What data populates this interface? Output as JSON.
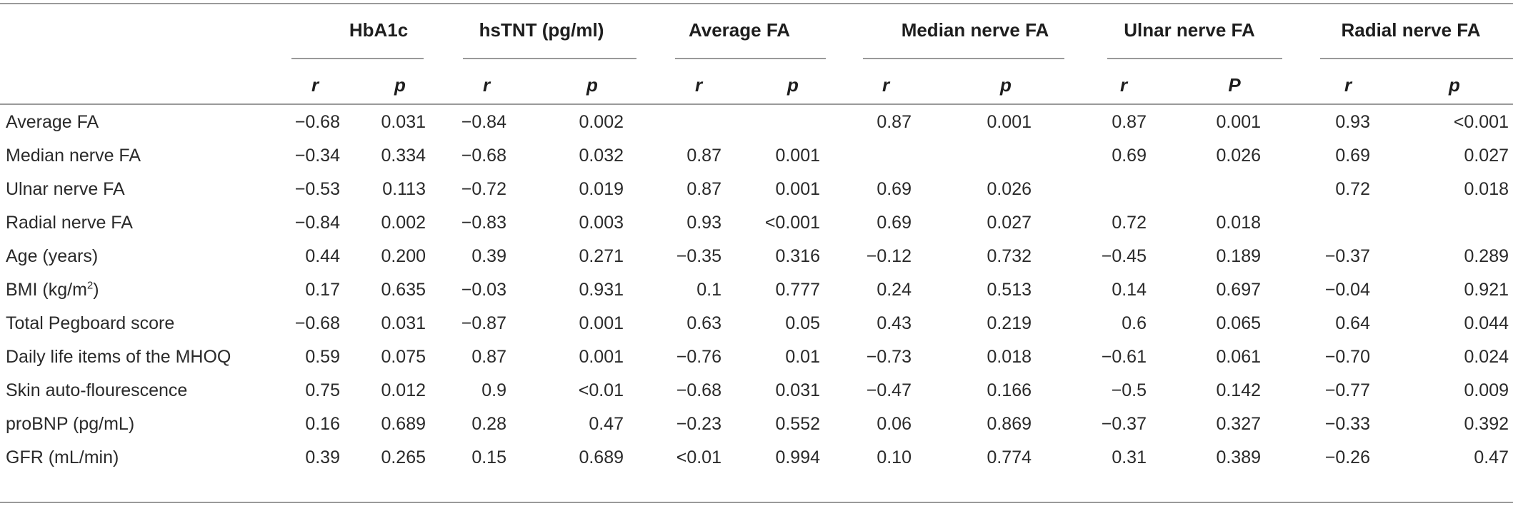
{
  "table": {
    "groups": [
      {
        "title": "HbA1c",
        "sub": [
          "r",
          "p"
        ]
      },
      {
        "title": "hsTNT (pg/ml)",
        "sub": [
          "r",
          "p"
        ]
      },
      {
        "title": "Average FA",
        "sub": [
          "r",
          "p"
        ]
      },
      {
        "title": "Median nerve FA",
        "sub": [
          "r",
          "p"
        ]
      },
      {
        "title": "Ulnar nerve FA",
        "sub": [
          "r",
          "P"
        ]
      },
      {
        "title": "Radial nerve FA",
        "sub": [
          "r",
          "p"
        ]
      }
    ],
    "rows": [
      {
        "label": "Average FA",
        "sup": "",
        "label_after": "",
        "cells": [
          "−0.68",
          "0.031",
          "−0.84",
          "0.002",
          "",
          "",
          "0.87",
          "0.001",
          "0.87",
          "0.001",
          "0.93",
          "<0.001"
        ]
      },
      {
        "label": "Median nerve FA",
        "sup": "",
        "label_after": "",
        "cells": [
          "−0.34",
          "0.334",
          "−0.68",
          "0.032",
          "0.87",
          "0.001",
          "",
          "",
          "0.69",
          "0.026",
          "0.69",
          "0.027"
        ]
      },
      {
        "label": "Ulnar nerve FA",
        "sup": "",
        "label_after": "",
        "cells": [
          "−0.53",
          "0.113",
          "−0.72",
          "0.019",
          "0.87",
          "0.001",
          "0.69",
          "0.026",
          "",
          "",
          "0.72",
          "0.018"
        ]
      },
      {
        "label": "Radial nerve FA",
        "sup": "",
        "label_after": "",
        "cells": [
          "−0.84",
          "0.002",
          "−0.83",
          "0.003",
          "0.93",
          "<0.001",
          "0.69",
          "0.027",
          "0.72",
          "0.018",
          "",
          ""
        ]
      },
      {
        "label": "Age (years)",
        "sup": "",
        "label_after": "",
        "cells": [
          "0.44",
          "0.200",
          "0.39",
          "0.271",
          "−0.35",
          "0.316",
          "−0.12",
          "0.732",
          "−0.45",
          "0.189",
          "−0.37",
          "0.289"
        ]
      },
      {
        "label": "BMI (kg/m",
        "sup": "2",
        "label_after": ")",
        "cells": [
          "0.17",
          "0.635",
          "−0.03",
          "0.931",
          "0.1",
          "0.777",
          "0.24",
          "0.513",
          "0.14",
          "0.697",
          "−0.04",
          "0.921"
        ]
      },
      {
        "label": "Total Pegboard score",
        "sup": "",
        "label_after": "",
        "cells": [
          "−0.68",
          "0.031",
          "−0.87",
          "0.001",
          "0.63",
          "0.05",
          "0.43",
          "0.219",
          "0.6",
          "0.065",
          "0.64",
          "0.044"
        ]
      },
      {
        "label": "Daily life items of the MHOQ",
        "sup": "",
        "label_after": "",
        "cells": [
          "0.59",
          "0.075",
          "0.87",
          "0.001",
          "−0.76",
          "0.01",
          "−0.73",
          "0.018",
          "−0.61",
          "0.061",
          "−0.70",
          "0.024"
        ]
      },
      {
        "label": "Skin auto-flourescence",
        "sup": "",
        "label_after": "",
        "cells": [
          "0.75",
          "0.012",
          "0.9",
          "<0.01",
          "−0.68",
          "0.031",
          "−0.47",
          "0.166",
          "−0.5",
          "0.142",
          "−0.77",
          "0.009"
        ]
      },
      {
        "label": "proBNP (pg/mL)",
        "sup": "",
        "label_after": "",
        "cells": [
          "0.16",
          "0.689",
          "0.28",
          "0.47",
          "−0.23",
          "0.552",
          "0.06",
          "0.869",
          "−0.37",
          "0.327",
          "−0.33",
          "0.392"
        ]
      },
      {
        "label": "GFR (mL/min)",
        "sup": "",
        "label_after": "",
        "cells": [
          "0.39",
          "0.265",
          "0.15",
          "0.689",
          "<0.01",
          "0.994",
          "0.10",
          "0.774",
          "0.31",
          "0.389",
          "−0.26",
          "0.47"
        ]
      }
    ]
  }
}
